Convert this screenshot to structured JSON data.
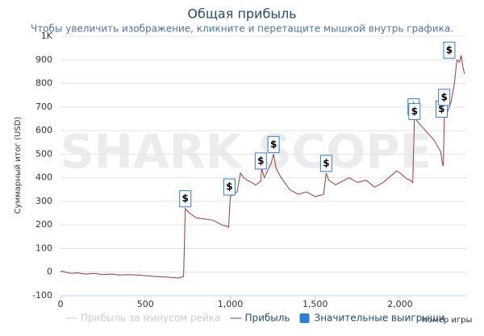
{
  "chart_data": {
    "type": "line",
    "title": "Общая прибыль",
    "subtitle": "Чтобы увеличить изображение, кликните и перетащите мышкой внутрь графика.",
    "watermark": "SHARK SCOPE",
    "y_label": "Суммарный итог (USD)",
    "x_label": "Номер игры",
    "xlim": [
      0,
      2390
    ],
    "ylim": [
      -100,
      1000
    ],
    "xticks": [
      0,
      500,
      {
        "value": 1000,
        "label": "1,000"
      },
      {
        "value": 1500,
        "label": "1,500"
      },
      {
        "value": 2000,
        "label": "2,000"
      }
    ],
    "yticks": [
      -100,
      0,
      100,
      200,
      300,
      400,
      500,
      600,
      700,
      800,
      900,
      {
        "value": 1000,
        "label": "1K"
      }
    ],
    "grid": true,
    "series": [
      {
        "name": "Прибыль за минусом рейка",
        "color": "#cccccc",
        "visible": false
      },
      {
        "name": "Прибыль",
        "color": "#9b3a3a",
        "x": [
          0,
          30,
          60,
          100,
          150,
          200,
          250,
          300,
          350,
          400,
          450,
          500,
          550,
          600,
          650,
          700,
          725,
          735,
          740,
          760,
          800,
          850,
          900,
          950,
          980,
          990,
          1000,
          1020,
          1040,
          1060,
          1080,
          1100,
          1150,
          1180,
          1185,
          1200,
          1240,
          1255,
          1270,
          1300,
          1350,
          1400,
          1450,
          1500,
          1550,
          1565,
          1580,
          1620,
          1700,
          1750,
          1800,
          1850,
          1900,
          1950,
          1980,
          2000,
          2040,
          2060,
          2075,
          2085,
          2100,
          2150,
          2200,
          2240,
          2250,
          2255,
          2262,
          2280,
          2300,
          2320,
          2335,
          2350,
          2360,
          2370,
          2380
        ],
        "values": [
          5,
          0,
          -5,
          -3,
          -8,
          -5,
          -10,
          -8,
          -12,
          -10,
          -12,
          -15,
          -18,
          -20,
          -22,
          -25,
          -18,
          270,
          265,
          250,
          230,
          225,
          220,
          200,
          195,
          190,
          320,
          330,
          340,
          420,
          400,
          390,
          370,
          385,
          440,
          400,
          460,
          500,
          440,
          400,
          350,
          330,
          340,
          320,
          330,
          420,
          390,
          370,
          400,
          380,
          390,
          360,
          380,
          410,
          430,
          420,
          395,
          390,
          380,
          660,
          640,
          600,
          560,
          510,
          460,
          450,
          700,
          680,
          720,
          800,
          900,
          890,
          920,
          870,
          840
        ]
      },
      {
        "name": "Значительные выигрыши",
        "color": "#2f7ed8",
        "marker": "flag",
        "flag_label": "$",
        "x": [
          735,
          995,
          1180,
          1255,
          1565,
          2080,
          2085,
          2245,
          2260,
          2290
        ],
        "values": [
          270,
          320,
          430,
          500,
          420,
          660,
          640,
          650,
          700,
          900
        ]
      }
    ]
  }
}
